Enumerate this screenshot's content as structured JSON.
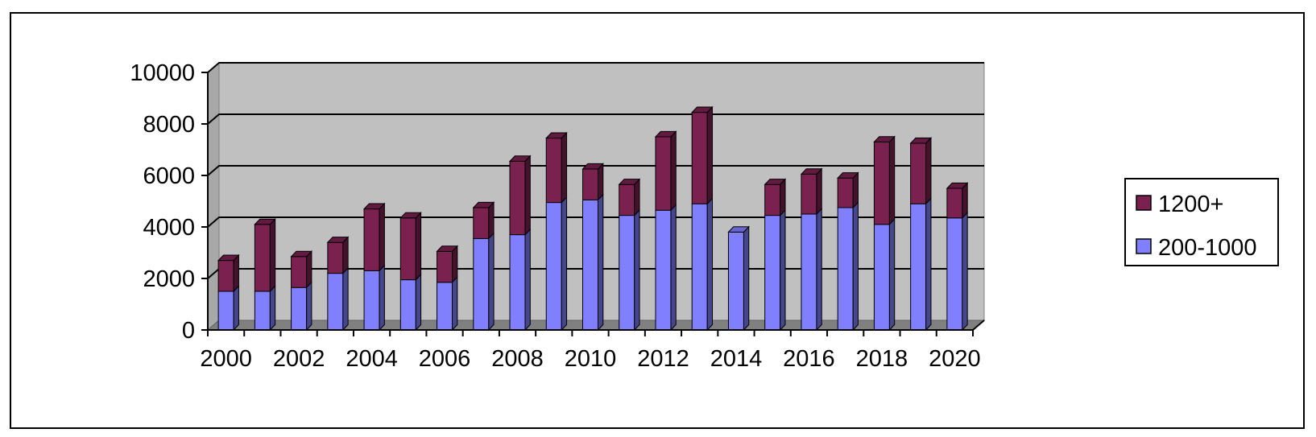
{
  "chart_data": {
    "type": "bar",
    "stacked": true,
    "style": "3d",
    "categories": [
      "2000",
      "2001",
      "2002",
      "2003",
      "2004",
      "2005",
      "2006",
      "2007",
      "2008",
      "2009",
      "2010",
      "2011",
      "2012",
      "2013",
      "2014",
      "2015",
      "2016",
      "2017",
      "2018",
      "2019",
      "2020"
    ],
    "x_tick_labels": [
      "2000",
      "2002",
      "2004",
      "2006",
      "2008",
      "2010",
      "2012",
      "2014",
      "2016",
      "2018",
      "2020"
    ],
    "series": [
      {
        "name": "200-1000",
        "values": [
          1500,
          1500,
          1650,
          2200,
          2300,
          1950,
          1850,
          3550,
          3700,
          4950,
          5050,
          4450,
          4650,
          4900,
          3800,
          4450,
          4500,
          4750,
          4100,
          4900,
          4350
        ],
        "color": "#8080ff"
      },
      {
        "name": "1200+",
        "values": [
          1200,
          2600,
          1200,
          1200,
          2400,
          2400,
          1200,
          1200,
          2850,
          2500,
          1200,
          1200,
          2850,
          3550,
          0,
          1200,
          1550,
          1150,
          3200,
          2350,
          1150
        ],
        "color": "#7b2150"
      }
    ],
    "ylim": [
      0,
      10000
    ],
    "y_ticks": [
      0,
      2000,
      4000,
      6000,
      8000,
      10000
    ],
    "legend_position": "right",
    "grid": true,
    "plot_background": "#c0c0c0",
    "title": "",
    "xlabel": "",
    "ylabel": ""
  }
}
